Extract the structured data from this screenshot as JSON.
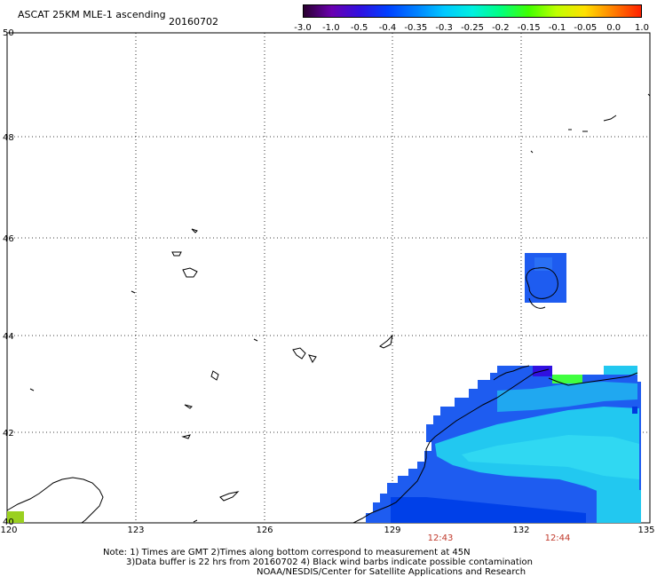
{
  "header": {
    "title": "ASCAT 25KM MLE-1 ascending",
    "date": "20160702"
  },
  "colorbar": {
    "tick_labels": [
      "-3.0",
      "-1.0",
      "-0.5",
      "-0.4",
      "-0.35",
      "-0.3",
      "-0.25",
      "-0.2",
      "-0.15",
      "-0.1",
      "-0.05",
      "0.0",
      "1.0"
    ],
    "colors": [
      "#2a0030",
      "#6a00b0",
      "#3010e0",
      "#0040ff",
      "#0080ff",
      "#00c8ff",
      "#00f0e0",
      "#00ff80",
      "#40ff00",
      "#c0ff00",
      "#ffe000",
      "#ff8000",
      "#ff2000"
    ]
  },
  "axes": {
    "latitude_labels": [
      "50",
      "48",
      "46",
      "44",
      "42",
      "40"
    ],
    "longitude_labels": [
      "120",
      "123",
      "126",
      "129",
      "132",
      "135"
    ],
    "time_labels": [
      "12:43",
      "12:44"
    ]
  },
  "notes": {
    "line1": "Note: 1) Times are GMT 2)Times along bottom correspond to measurement at 45N",
    "line2": "3)Data buffer is 22 hrs from 20160702 4) Black wind barbs indicate possible contamination",
    "line3": "NOAA/NESDIS/Center for Satellite Applications and Research"
  },
  "map": {
    "extent": {
      "lon_min": 120,
      "lon_max": 135,
      "lat_min": 40,
      "lat_max": 50
    },
    "grid": true,
    "swath_color_main": "#1e5cf0",
    "swath_color_light": "#22c8f0",
    "land_outline_color": "#000000"
  }
}
